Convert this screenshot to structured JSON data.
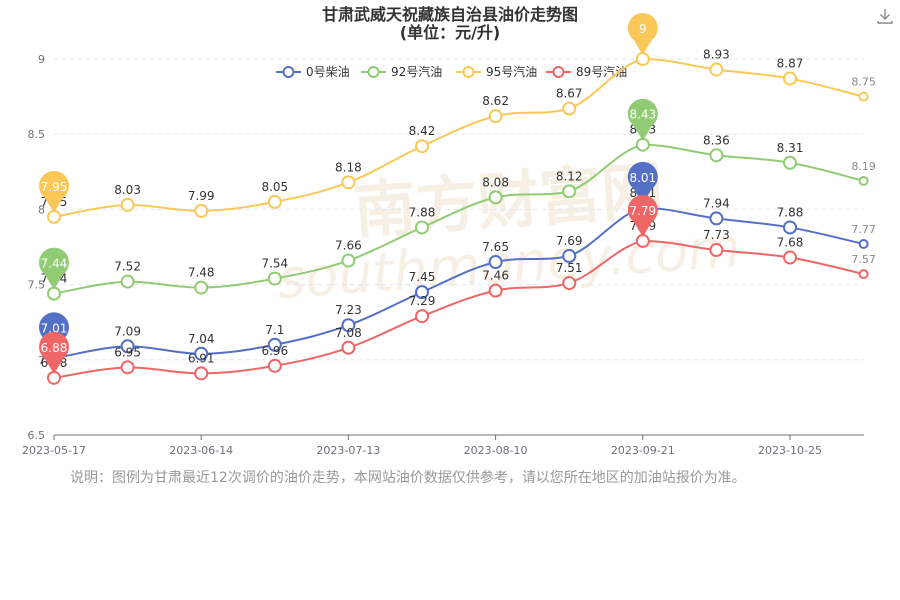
{
  "title": {
    "line1": "甘肃武威天祝藏族自治县油价走势图",
    "line2": "(单位：元/升)"
  },
  "watermark": {
    "cn": "南方财富网",
    "en": "southmoney.com"
  },
  "note": "说明：图例为甘肃最近12次调价的油价走势，本网站油价数据仅供参考，请以您所在地区的加油站报价为准。",
  "toolbar": {
    "download_icon": "download-icon"
  },
  "chart_data": {
    "type": "line",
    "smooth": true,
    "x_ticks": [
      "2023-05-17",
      "2023-06-14",
      "2023-07-13",
      "2023-08-10",
      "2023-09-21",
      "2023-10-25"
    ],
    "x_tick_index": [
      0,
      2,
      4,
      6,
      8,
      10
    ],
    "n_points": 12,
    "ylim": [
      6.5,
      9
    ],
    "y_ticks": [
      "6.5",
      "7",
      "7.5",
      "8",
      "8.5",
      "9"
    ],
    "legend_position": "top-center",
    "grid": "horizontal dashed",
    "series": [
      {
        "name": "0号柴油",
        "color": "#5470c6",
        "values": [
          7.01,
          7.09,
          7.04,
          7.1,
          7.23,
          7.45,
          7.65,
          7.69,
          8.01,
          7.94,
          7.88,
          7.77
        ],
        "labels": [
          "7.01",
          "7.09",
          "7.04",
          "7.1",
          "7.23",
          "7.45",
          "7.65",
          "7.69",
          "8.01",
          "7.94",
          "7.88",
          "7.77"
        ],
        "pins": [
          0,
          8
        ]
      },
      {
        "name": "92号汽油",
        "color": "#91cc75",
        "values": [
          7.44,
          7.52,
          7.48,
          7.54,
          7.66,
          7.88,
          8.08,
          8.12,
          8.43,
          8.36,
          8.31,
          8.19
        ],
        "labels": [
          "7.44",
          "7.52",
          "7.48",
          "7.54",
          "7.66",
          "7.88",
          "8.08",
          "8.12",
          "8.43",
          "8.36",
          "8.31",
          "8.19"
        ],
        "pins": [
          0,
          8
        ]
      },
      {
        "name": "95号汽油",
        "color": "#fac858",
        "values": [
          7.95,
          8.03,
          7.99,
          8.05,
          8.18,
          8.42,
          8.62,
          8.67,
          9,
          8.93,
          8.87,
          8.75
        ],
        "labels": [
          "7.95",
          "8.03",
          "7.99",
          "8.05",
          "8.18",
          "8.42",
          "8.62",
          "8.67",
          "9",
          "8.93",
          "8.87",
          "8.75"
        ],
        "pins": [
          0,
          8
        ]
      },
      {
        "name": "89号汽油",
        "color": "#ee6666",
        "values": [
          6.88,
          6.95,
          6.91,
          6.96,
          7.08,
          7.29,
          7.46,
          7.51,
          7.79,
          7.73,
          7.68,
          7.57
        ],
        "labels": [
          "6.88",
          "6.95",
          "6.91",
          "6.96",
          "7.08",
          "7.29",
          "7.46",
          "7.51",
          "7.79",
          "7.73",
          "7.68",
          "7.57"
        ],
        "pins": [
          0,
          8
        ]
      }
    ]
  }
}
